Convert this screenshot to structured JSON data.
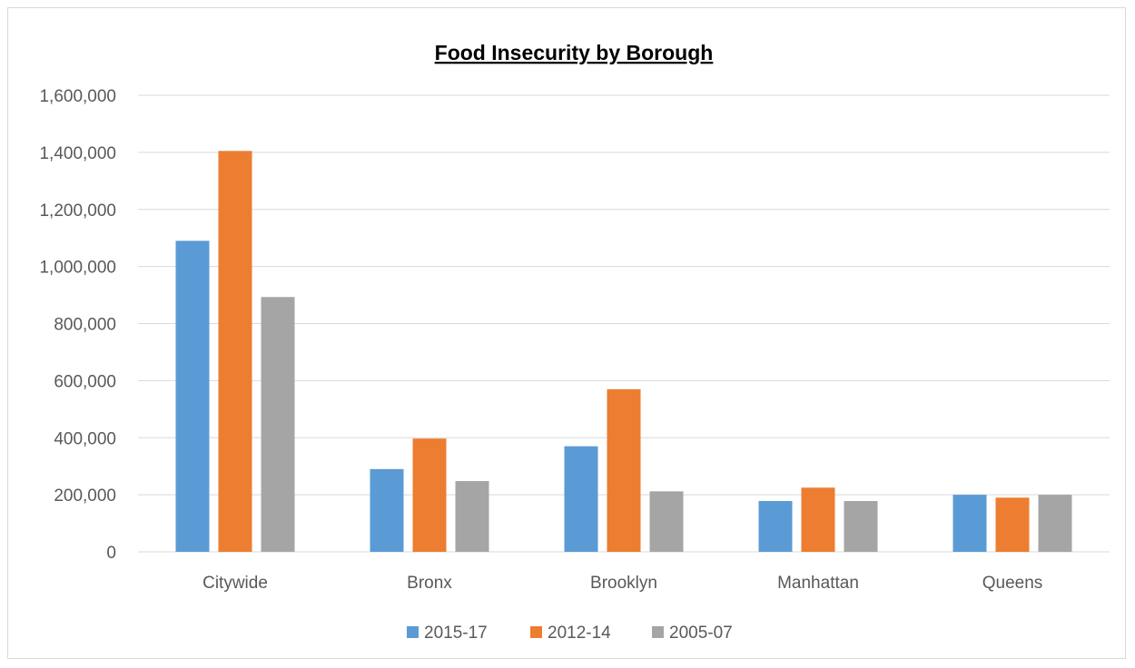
{
  "chart_data": {
    "type": "bar",
    "title": "Food Insecurity by Borough",
    "xlabel": "",
    "ylabel": "",
    "categories": [
      "Citywide",
      "Bronx",
      "Brooklyn",
      "Manhattan",
      "Queens"
    ],
    "series": [
      {
        "name": "2015-17",
        "color": "#5b9bd5",
        "values": [
          1090000,
          290000,
          370000,
          178000,
          200000
        ]
      },
      {
        "name": "2012-14",
        "color": "#ed7d31",
        "values": [
          1405000,
          397000,
          570000,
          225000,
          190000
        ]
      },
      {
        "name": "2005-07",
        "color": "#a5a5a5",
        "values": [
          893000,
          248000,
          212000,
          178000,
          200000
        ]
      }
    ],
    "ylim": [
      0,
      1600000
    ],
    "yticks": [
      0,
      200000,
      400000,
      600000,
      800000,
      1000000,
      1200000,
      1400000,
      1600000
    ],
    "ytick_labels": [
      "0",
      "200,000",
      "400,000",
      "600,000",
      "800,000",
      "1,000,000",
      "1,200,000",
      "1,400,000",
      "1,600,000"
    ],
    "grid": true,
    "legend_position": "bottom",
    "title_underlined": true
  }
}
